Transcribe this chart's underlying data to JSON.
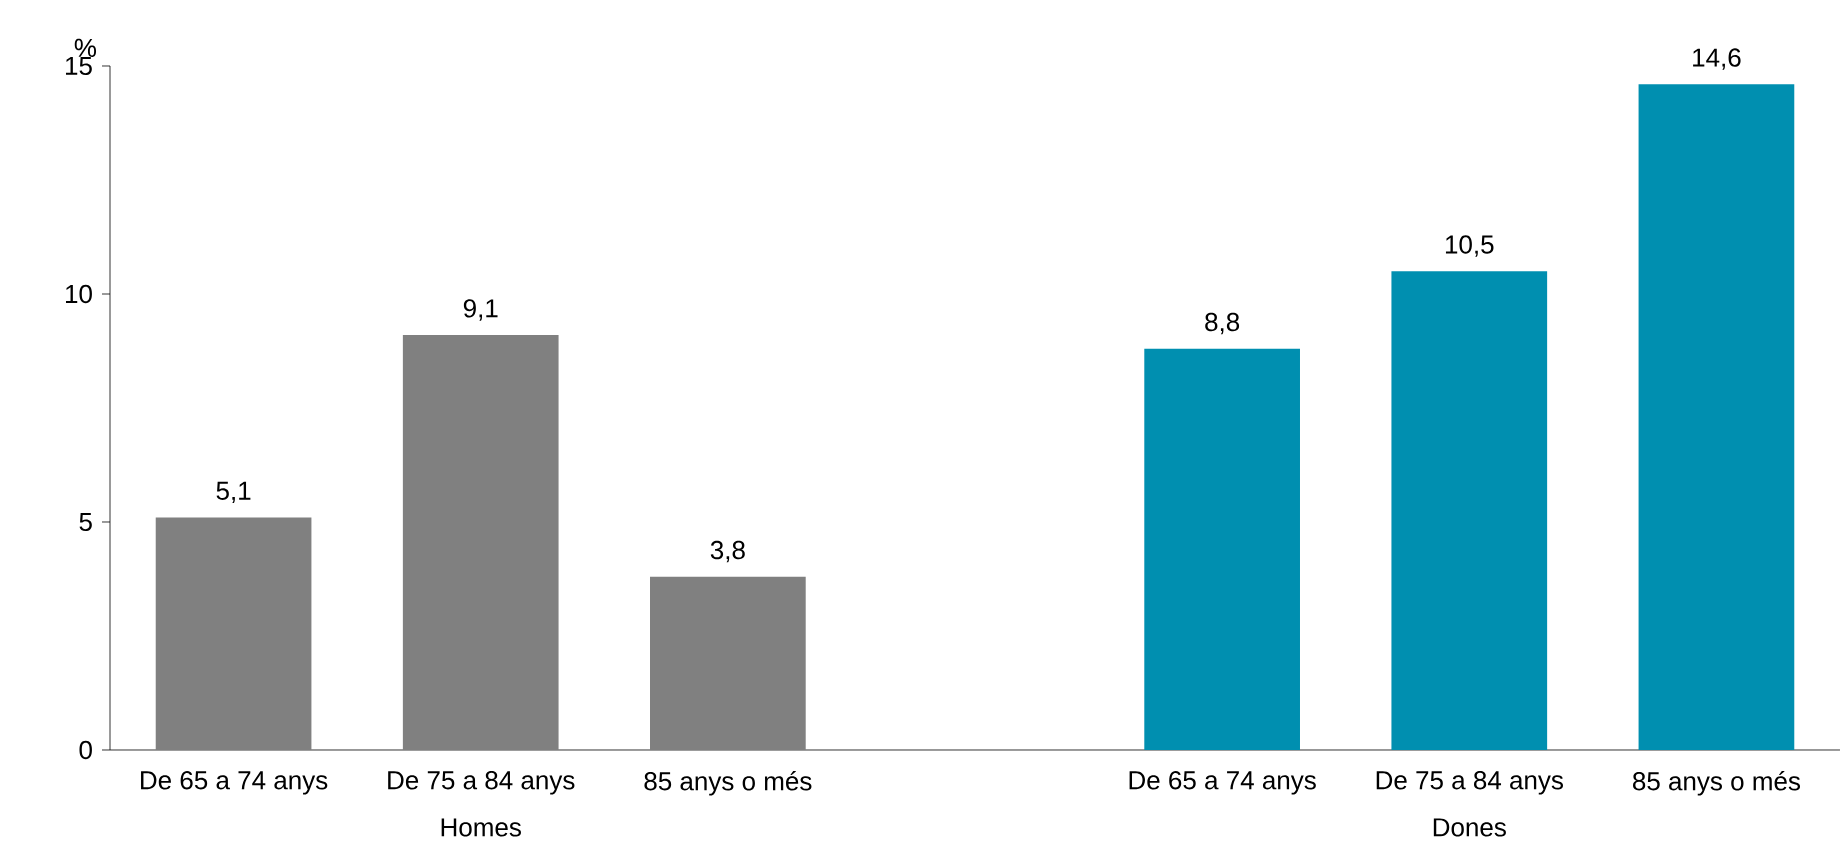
{
  "chart_data": {
    "type": "bar",
    "ylabel": "%",
    "categories": [
      "De 65 a 74 anys",
      "De 75 a 84 anys",
      "85 anys o més",
      null,
      "De 65 a 74 anys",
      "De 75 a 84 anys",
      "85 anys o més"
    ],
    "values": [
      5.1,
      9.1,
      3.8,
      null,
      8.8,
      10.5,
      14.6
    ],
    "value_labels": [
      "5,1",
      "9,1",
      "3,8",
      null,
      "8,8",
      "10,5",
      "14,6"
    ],
    "colors": [
      "#808080",
      "#808080",
      "#808080",
      null,
      "#008fb0",
      "#008fb0",
      "#008fb0"
    ],
    "ylim": [
      0,
      15
    ],
    "yticks": [
      0,
      5,
      10,
      15
    ],
    "annotations": [
      "Homes",
      "Dones"
    ]
  }
}
